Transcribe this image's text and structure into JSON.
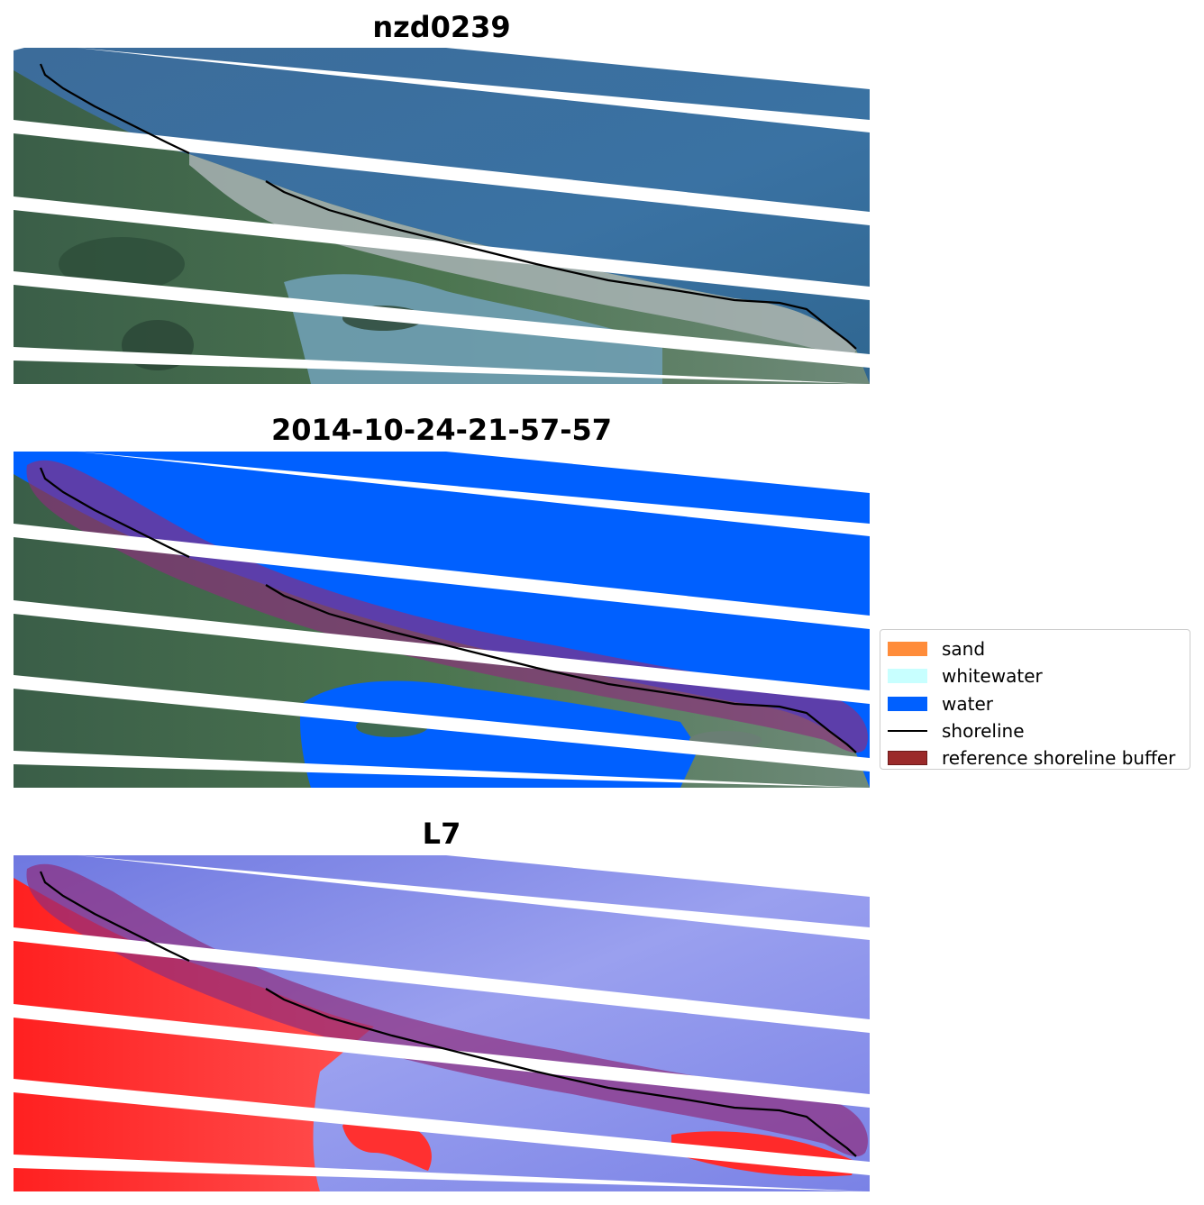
{
  "panels": [
    {
      "title": "nzd0239",
      "style": "rgb"
    },
    {
      "title": "2014-10-24-21-57-57",
      "style": "classified"
    },
    {
      "title": "L7",
      "style": "index"
    }
  ],
  "legend": {
    "items": [
      {
        "label": "sand",
        "color": "#ff8c3a",
        "kind": "patch"
      },
      {
        "label": "whitewater",
        "color": "#c8ffff",
        "kind": "patch"
      },
      {
        "label": "water",
        "color": "#0060ff",
        "kind": "patch"
      },
      {
        "label": "shoreline",
        "color": "#000000",
        "kind": "line"
      },
      {
        "label": "reference shoreline buffer",
        "color": "#9b2a2a",
        "kind": "patch"
      }
    ]
  },
  "colors": {
    "sea_rgb": "#3b6f9e",
    "land_rgb": "#3f6b4e",
    "town_rgb": "#9aa7a8",
    "water_class": "#0060ff",
    "index_water": "#7f86e6",
    "index_land": "#ff2a2a",
    "buffer": "#8e2d7d",
    "shoreline": "#000000"
  }
}
